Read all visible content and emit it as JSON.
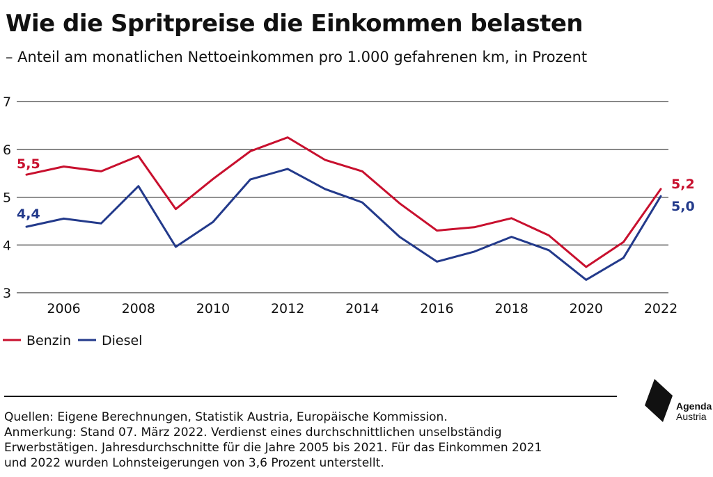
{
  "chart_data": {
    "type": "line",
    "title": "Wie die Spritpreise die Einkommen belasten",
    "subtitle": "– Anteil am monatlichen Nettoeinkommen pro 1.000 gefahrenen km, in Prozent",
    "x": [
      2005,
      2006,
      2007,
      2008,
      2009,
      2010,
      2011,
      2012,
      2013,
      2014,
      2015,
      2016,
      2017,
      2018,
      2019,
      2020,
      2021,
      2022
    ],
    "xticks": [
      "2006",
      "2008",
      "2010",
      "2012",
      "2014",
      "2016",
      "2018",
      "2020",
      "2022"
    ],
    "yticks": [
      "7",
      "6",
      "5",
      "4",
      "3"
    ],
    "ylim": [
      3,
      7
    ],
    "xlim": [
      2005,
      2022
    ],
    "grid": true,
    "legend_position": "bottom-left",
    "series": [
      {
        "name": "Benzin",
        "color": "#c8102e",
        "values": [
          5.47,
          5.64,
          5.54,
          5.86,
          4.75,
          5.38,
          5.96,
          6.25,
          5.78,
          5.54,
          4.87,
          4.3,
          4.37,
          4.56,
          4.2,
          3.54,
          4.06,
          5.17
        ],
        "first_label": "5,5",
        "last_label": "5,2"
      },
      {
        "name": "Diesel",
        "color": "#233a8b",
        "values": [
          4.38,
          4.55,
          4.45,
          5.23,
          3.96,
          4.48,
          5.37,
          5.59,
          5.17,
          4.89,
          4.17,
          3.65,
          3.86,
          4.17,
          3.89,
          3.27,
          3.73,
          5.02
        ],
        "first_label": "4,4",
        "last_label": "5,0"
      }
    ]
  },
  "footer": {
    "lines": [
      "Quellen: Eigene Berechnungen, Statistik Austria, Europäische Kommission.",
      "Anmerkung: Stand 07. März 2022. Verdienst eines durchschnittlichen unselbständig",
      "Erwerbstätigen. Jahresdurchschnitte für die Jahre 2005 bis 2021. Für das Einkommen 2021",
      "und 2022 wurden Lohnsteigerungen von 3,6 Prozent unterstellt."
    ]
  },
  "logo": {
    "name": "Agenda",
    "sub": "Austria"
  }
}
